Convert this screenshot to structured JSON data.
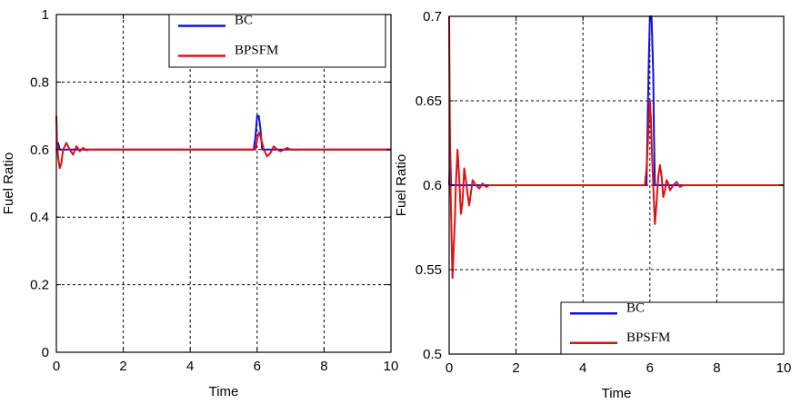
{
  "colors": {
    "bc": "#1010e0",
    "bpsfm": "#e01010",
    "grid": "#000000",
    "background": "#ffffff"
  },
  "chart_data": [
    {
      "type": "line",
      "xlabel": "Time",
      "ylabel": "Fuel Ratio",
      "xlim": [
        0,
        10
      ],
      "ylim": [
        0,
        1
      ],
      "xticks": [
        0,
        2,
        4,
        6,
        8,
        10
      ],
      "yticks": [
        0,
        0.2,
        0.4,
        0.6,
        0.8,
        1
      ],
      "ytick_labels": [
        "0",
        "0.2",
        "0.4",
        "0.6",
        "0.8",
        "1"
      ],
      "grid": true,
      "legend_position": "top-right",
      "series": [
        {
          "name": "BC",
          "x": [
            0,
            0.05,
            0.1,
            0.2,
            0.3,
            0.4,
            0.5,
            0.7,
            1.0,
            1.3,
            5.9,
            5.95,
            6.0,
            6.05,
            6.1,
            6.15,
            6.2,
            6.3,
            6.5,
            6.7,
            7.0,
            10
          ],
          "y": [
            0.6,
            0.62,
            0.6,
            0.6,
            0.6,
            0.6,
            0.6,
            0.6,
            0.6,
            0.6,
            0.6,
            0.64,
            0.7,
            0.7,
            0.66,
            0.6,
            0.6,
            0.6,
            0.6,
            0.6,
            0.6,
            0.6
          ]
        },
        {
          "name": "BPSFM",
          "x": [
            0,
            0.02,
            0.05,
            0.1,
            0.15,
            0.2,
            0.3,
            0.4,
            0.5,
            0.6,
            0.7,
            0.8,
            0.9,
            1.0,
            1.2,
            1.5,
            5.95,
            6.0,
            6.05,
            6.1,
            6.15,
            6.2,
            6.3,
            6.4,
            6.5,
            6.6,
            6.7,
            6.8,
            6.9,
            7.0,
            7.2,
            10
          ],
          "y": [
            0.7,
            0.62,
            0.58,
            0.545,
            0.56,
            0.6,
            0.62,
            0.6,
            0.585,
            0.61,
            0.595,
            0.605,
            0.598,
            0.6,
            0.6,
            0.6,
            0.6,
            0.63,
            0.65,
            0.64,
            0.62,
            0.6,
            0.58,
            0.59,
            0.61,
            0.6,
            0.595,
            0.6,
            0.605,
            0.6,
            0.6,
            0.6
          ]
        }
      ]
    },
    {
      "type": "line",
      "xlabel": "Time",
      "ylabel": "Fuel Ratio",
      "xlim": [
        0,
        10
      ],
      "ylim": [
        0.5,
        0.7
      ],
      "xticks": [
        0,
        2,
        4,
        6,
        8,
        10
      ],
      "yticks": [
        0.5,
        0.55,
        0.6,
        0.65,
        0.7
      ],
      "ytick_labels": [
        "0.5",
        "0.55",
        "0.6",
        "0.65",
        "0.7"
      ],
      "grid": true,
      "legend_position": "bottom-right",
      "series": [
        {
          "name": "BC",
          "x": [
            0,
            0.03,
            0.06,
            0.1,
            0.2,
            0.3,
            0.5,
            0.8,
            1.2,
            5.9,
            5.93,
            5.96,
            6.0,
            6.05,
            6.1,
            6.12,
            6.15,
            6.2,
            6.3,
            6.5,
            7.0,
            10
          ],
          "y": [
            0.6,
            0.62,
            0.6,
            0.6,
            0.6,
            0.6,
            0.6,
            0.6,
            0.6,
            0.6,
            0.633,
            0.666,
            0.7,
            0.7,
            0.666,
            0.633,
            0.6,
            0.6,
            0.6,
            0.6,
            0.6,
            0.6
          ]
        },
        {
          "name": "BPSFM",
          "x": [
            0,
            0.02,
            0.04,
            0.07,
            0.1,
            0.13,
            0.17,
            0.2,
            0.25,
            0.3,
            0.35,
            0.4,
            0.45,
            0.5,
            0.55,
            0.6,
            0.7,
            0.8,
            0.9,
            1.0,
            1.1,
            1.2,
            1.3,
            1.5,
            5.85,
            5.9,
            5.95,
            6.0,
            6.03,
            6.06,
            6.1,
            6.15,
            6.2,
            6.25,
            6.3,
            6.35,
            6.4,
            6.45,
            6.5,
            6.55,
            6.6,
            6.7,
            6.8,
            6.9,
            7.0,
            7.2,
            10
          ],
          "y": [
            0.7,
            0.64,
            0.6,
            0.57,
            0.545,
            0.56,
            0.58,
            0.6,
            0.621,
            0.605,
            0.583,
            0.59,
            0.61,
            0.603,
            0.595,
            0.588,
            0.603,
            0.6,
            0.598,
            0.601,
            0.599,
            0.6,
            0.6,
            0.6,
            0.6,
            0.61,
            0.63,
            0.65,
            0.64,
            0.62,
            0.6,
            0.577,
            0.59,
            0.605,
            0.612,
            0.605,
            0.593,
            0.597,
            0.603,
            0.601,
            0.597,
            0.6,
            0.602,
            0.599,
            0.6,
            0.6,
            0.6
          ]
        }
      ]
    }
  ]
}
